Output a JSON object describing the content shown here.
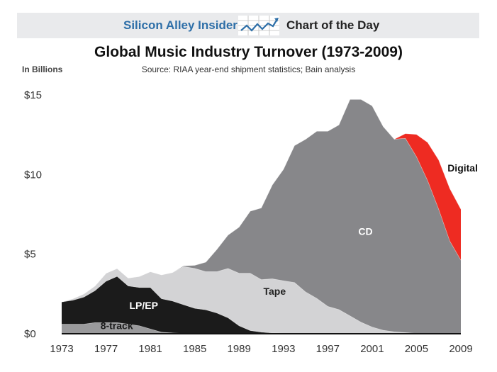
{
  "header": {
    "brand": "Silicon Alley Insider",
    "tagline": "Chart of the Day",
    "logo_icon": "rising-line-chart-icon"
  },
  "chart_data": {
    "type": "area",
    "stacked": true,
    "title": "Global Music Industry Turnover (1973-2009)",
    "subtitle": "Source: RIAA year-end shipment statistics; Bain analysis",
    "unit_label": "In Billions",
    "xlabel": "",
    "ylabel": "",
    "xlim": [
      1973,
      2009
    ],
    "ylim": [
      0,
      15
    ],
    "y_ticks": [
      0,
      5,
      10,
      15
    ],
    "y_tick_labels": [
      "$0",
      "$5",
      "$10",
      "$15"
    ],
    "x_ticks": [
      1973,
      1977,
      1981,
      1985,
      1989,
      1993,
      1997,
      2001,
      2005,
      2009
    ],
    "x": [
      1973,
      1974,
      1975,
      1976,
      1977,
      1978,
      1979,
      1980,
      1981,
      1982,
      1983,
      1984,
      1985,
      1986,
      1987,
      1988,
      1989,
      1990,
      1991,
      1992,
      1993,
      1994,
      1995,
      1996,
      1997,
      1998,
      1999,
      2000,
      2001,
      2002,
      2003,
      2004,
      2005,
      2006,
      2007,
      2008,
      2009
    ],
    "series": [
      {
        "name": "8-track",
        "color": "#9a9a9c",
        "values": [
          0.6,
          0.6,
          0.6,
          0.7,
          0.7,
          0.7,
          0.6,
          0.5,
          0.3,
          0.1,
          0.05,
          0.02,
          0,
          0,
          0,
          0,
          0,
          0,
          0,
          0,
          0,
          0,
          0,
          0,
          0,
          0,
          0,
          0,
          0,
          0,
          0,
          0,
          0,
          0,
          0,
          0,
          0
        ]
      },
      {
        "name": "LP/EP",
        "color": "#1b1b1b",
        "values": [
          1.4,
          1.5,
          1.7,
          2.0,
          2.6,
          2.9,
          2.4,
          2.4,
          2.6,
          2.1,
          2.0,
          1.8,
          1.6,
          1.5,
          1.3,
          1.0,
          0.5,
          0.2,
          0.1,
          0.05,
          0.03,
          0.02,
          0.02,
          0.02,
          0.02,
          0.02,
          0.02,
          0.02,
          0.02,
          0.02,
          0.02,
          0.02,
          0.02,
          0.02,
          0.02,
          0.02,
          0.02
        ]
      },
      {
        "name": "Tape",
        "color": "#d3d3d5",
        "values": [
          0,
          0.1,
          0.2,
          0.3,
          0.5,
          0.5,
          0.5,
          0.7,
          1.0,
          1.5,
          1.8,
          2.4,
          2.5,
          2.4,
          2.6,
          3.1,
          3.3,
          3.6,
          3.3,
          3.4,
          3.3,
          3.2,
          2.6,
          2.2,
          1.7,
          1.5,
          1.1,
          0.7,
          0.4,
          0.2,
          0.1,
          0.05,
          0,
          0,
          0,
          0,
          0
        ]
      },
      {
        "name": "CD",
        "color": "#87878a",
        "values": [
          0,
          0,
          0,
          0,
          0,
          0,
          0,
          0,
          0,
          0,
          0,
          0.05,
          0.2,
          0.6,
          1.4,
          2.1,
          2.9,
          3.9,
          4.5,
          5.9,
          7.0,
          8.6,
          9.6,
          10.5,
          11.0,
          11.6,
          13.6,
          14.0,
          13.9,
          12.8,
          12.1,
          12.2,
          11.1,
          9.6,
          7.8,
          5.8,
          4.6
        ]
      },
      {
        "name": "Digital",
        "color": "#ee2b22",
        "values": [
          0,
          0,
          0,
          0,
          0,
          0,
          0,
          0,
          0,
          0,
          0,
          0,
          0,
          0,
          0,
          0,
          0,
          0,
          0,
          0,
          0,
          0,
          0,
          0,
          0,
          0,
          0,
          0,
          0,
          0,
          0,
          0.3,
          1.4,
          2.4,
          3.1,
          3.3,
          3.2
        ]
      }
    ]
  }
}
